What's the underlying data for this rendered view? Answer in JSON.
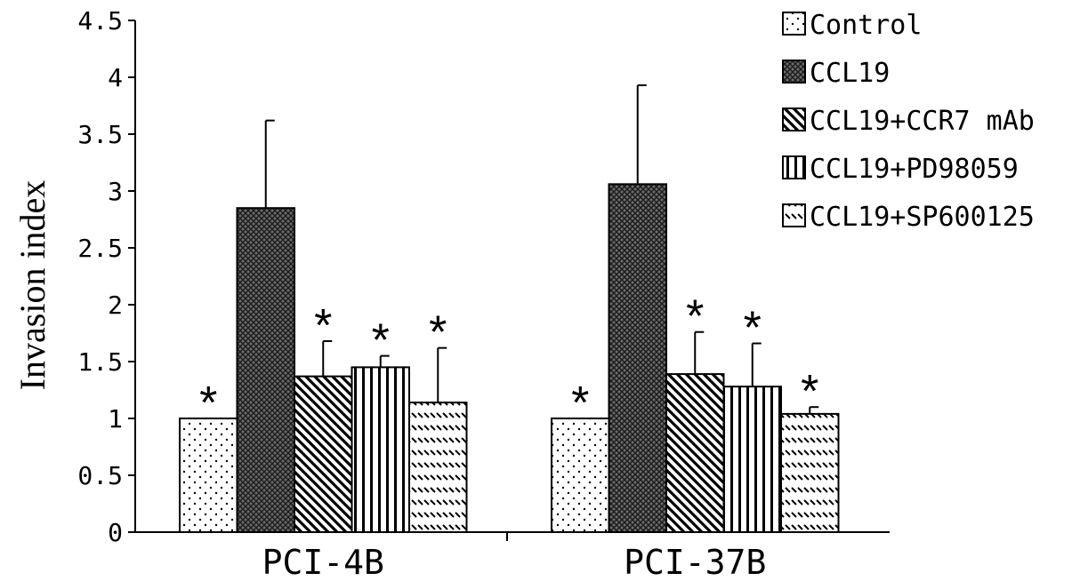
{
  "chart_data": {
    "type": "bar",
    "categories": [
      "PCI-4B",
      "PCI-37B"
    ],
    "ylabel": "Invasion index",
    "xlabel": "",
    "ylim": [
      0,
      4.5
    ],
    "y_ticks": [
      "0",
      "0.5",
      "1",
      "1.5",
      "2",
      "2.5",
      "3",
      "3.5",
      "4",
      "4.5"
    ],
    "legend_position": "top-right",
    "significance_mark": "*",
    "series": [
      {
        "name": "Control",
        "pattern": "dots",
        "values": [
          1.0,
          1.0
        ],
        "errors": [
          0,
          0
        ],
        "significant": [
          true,
          true
        ]
      },
      {
        "name": "CCL19",
        "pattern": "crosshatch-dark",
        "values": [
          2.85,
          3.06
        ],
        "errors": [
          0.77,
          0.87
        ],
        "significant": [
          false,
          false
        ]
      },
      {
        "name": "CCL19+CCR7 mAb",
        "pattern": "diagonal",
        "values": [
          1.37,
          1.39
        ],
        "errors": [
          0.31,
          0.37
        ],
        "significant": [
          true,
          true
        ]
      },
      {
        "name": "CCL19+PD98059",
        "pattern": "vertical",
        "values": [
          1.45,
          1.28
        ],
        "errors": [
          0.1,
          0.38
        ],
        "significant": [
          true,
          true
        ]
      },
      {
        "name": "CCL19+SP600125",
        "pattern": "dashes",
        "values": [
          1.14,
          1.04
        ],
        "errors": [
          0.48,
          0.06
        ],
        "significant": [
          true,
          true
        ]
      }
    ]
  }
}
